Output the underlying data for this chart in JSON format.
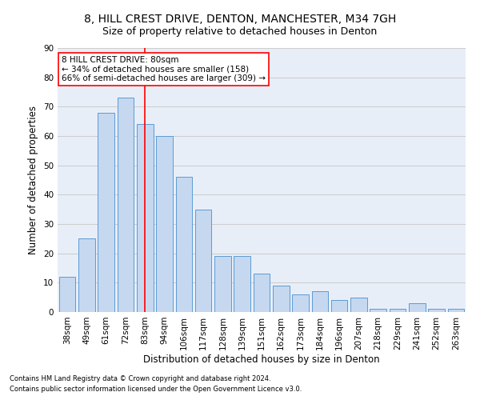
{
  "title1": "8, HILL CREST DRIVE, DENTON, MANCHESTER, M34 7GH",
  "title2": "Size of property relative to detached houses in Denton",
  "xlabel": "Distribution of detached houses by size in Denton",
  "ylabel": "Number of detached properties",
  "footnote1": "Contains HM Land Registry data © Crown copyright and database right 2024.",
  "footnote2": "Contains public sector information licensed under the Open Government Licence v3.0.",
  "categories": [
    "38sqm",
    "49sqm",
    "61sqm",
    "72sqm",
    "83sqm",
    "94sqm",
    "106sqm",
    "117sqm",
    "128sqm",
    "139sqm",
    "151sqm",
    "162sqm",
    "173sqm",
    "184sqm",
    "196sqm",
    "207sqm",
    "218sqm",
    "229sqm",
    "241sqm",
    "252sqm",
    "263sqm"
  ],
  "values": [
    12,
    25,
    68,
    73,
    64,
    60,
    46,
    35,
    19,
    19,
    13,
    9,
    6,
    7,
    4,
    5,
    1,
    1,
    3,
    1,
    1
  ],
  "bar_color": "#c5d8f0",
  "bar_edge_color": "#5b9bd5",
  "vline_x": 4.0,
  "vline_color": "red",
  "annotation_line1": "8 HILL CREST DRIVE: 80sqm",
  "annotation_line2": "← 34% of detached houses are smaller (158)",
  "annotation_line3": "66% of semi-detached houses are larger (309) →",
  "annotation_box_color": "white",
  "annotation_box_edge_color": "red",
  "ylim": [
    0,
    90
  ],
  "yticks": [
    0,
    10,
    20,
    30,
    40,
    50,
    60,
    70,
    80,
    90
  ],
  "grid_color": "#cccccc",
  "background_color": "#e8eef8",
  "title1_fontsize": 10,
  "title2_fontsize": 9,
  "xlabel_fontsize": 8.5,
  "ylabel_fontsize": 8.5,
  "tick_fontsize": 7.5,
  "annotation_fontsize": 7.5,
  "footnote_fontsize": 6
}
